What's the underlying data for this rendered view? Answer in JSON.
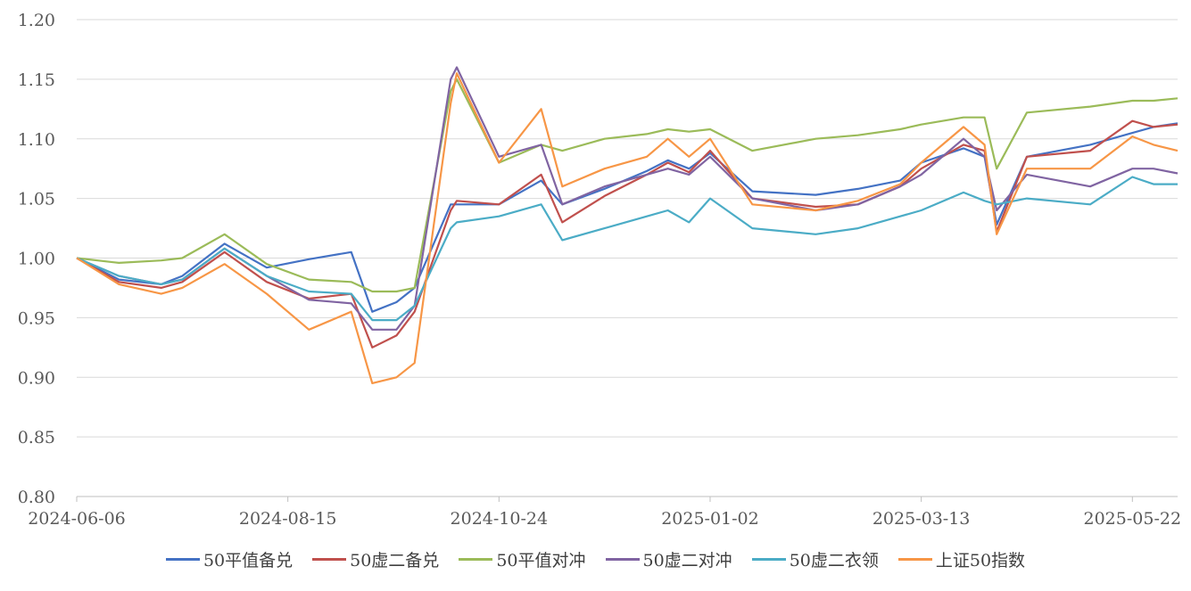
{
  "chart_data": {
    "type": "line",
    "title": "",
    "xlabel": "",
    "ylabel": "",
    "ylim": [
      0.8,
      1.2
    ],
    "yticks": [
      "0.80",
      "0.85",
      "0.90",
      "0.95",
      "1.00",
      "1.05",
      "1.10",
      "1.15",
      "1.20"
    ],
    "xticks": [
      "2024-06-06",
      "2024-08-15",
      "2024-10-24",
      "2025-01-02",
      "2025-03-13",
      "2025-05-22"
    ],
    "grid": "horizontal",
    "legend": "bottom",
    "x": [
      "2024-06-06",
      "2024-06-20",
      "2024-07-04",
      "2024-07-11",
      "2024-07-25",
      "2024-08-08",
      "2024-08-22",
      "2024-09-05",
      "2024-09-12",
      "2024-09-20",
      "2024-09-26",
      "2024-10-08",
      "2024-10-10",
      "2024-10-24",
      "2024-11-07",
      "2024-11-14",
      "2024-11-28",
      "2024-12-12",
      "2024-12-19",
      "2024-12-26",
      "2025-01-02",
      "2025-01-16",
      "2025-02-06",
      "2025-02-20",
      "2025-03-06",
      "2025-03-13",
      "2025-03-27",
      "2025-04-03",
      "2025-04-07",
      "2025-04-17",
      "2025-05-08",
      "2025-05-22",
      "2025-05-29",
      "2025-06-06"
    ],
    "series": [
      {
        "name": "50平值备兑",
        "color": "#4472C4",
        "values": [
          1.0,
          0.982,
          0.978,
          0.985,
          1.012,
          0.992,
          0.999,
          1.005,
          0.955,
          0.963,
          0.975,
          1.045,
          1.045,
          1.045,
          1.065,
          1.045,
          1.058,
          1.073,
          1.082,
          1.075,
          1.088,
          1.056,
          1.053,
          1.058,
          1.065,
          1.08,
          1.092,
          1.085,
          1.028,
          1.085,
          1.095,
          1.105,
          1.11,
          1.113
        ]
      },
      {
        "name": "50虚二备兑",
        "color": "#C0504D",
        "values": [
          1.0,
          0.98,
          0.975,
          0.98,
          1.005,
          0.98,
          0.966,
          0.97,
          0.925,
          0.935,
          0.955,
          1.04,
          1.048,
          1.045,
          1.07,
          1.03,
          1.052,
          1.07,
          1.08,
          1.072,
          1.09,
          1.05,
          1.043,
          1.045,
          1.06,
          1.075,
          1.095,
          1.09,
          1.022,
          1.085,
          1.09,
          1.115,
          1.11,
          1.112
        ]
      },
      {
        "name": "50平值对冲",
        "color": "#9BBB59",
        "values": [
          1.0,
          0.996,
          0.998,
          1.0,
          1.02,
          0.995,
          0.982,
          0.98,
          0.972,
          0.972,
          0.975,
          1.14,
          1.15,
          1.08,
          1.095,
          1.09,
          1.1,
          1.104,
          1.108,
          1.106,
          1.108,
          1.09,
          1.1,
          1.103,
          1.108,
          1.112,
          1.118,
          1.118,
          1.075,
          1.122,
          1.127,
          1.132,
          1.132,
          1.134
        ]
      },
      {
        "name": "50虚二对冲",
        "color": "#8064A2",
        "values": [
          1.0,
          0.985,
          0.978,
          0.982,
          1.008,
          0.985,
          0.965,
          0.962,
          0.94,
          0.94,
          0.96,
          1.15,
          1.16,
          1.085,
          1.095,
          1.045,
          1.06,
          1.07,
          1.075,
          1.07,
          1.085,
          1.05,
          1.04,
          1.045,
          1.06,
          1.07,
          1.1,
          1.085,
          1.04,
          1.07,
          1.06,
          1.075,
          1.075,
          1.071
        ]
      },
      {
        "name": "50虚二衣领",
        "color": "#4BACC6",
        "values": [
          1.0,
          0.985,
          0.978,
          0.982,
          1.008,
          0.985,
          0.972,
          0.97,
          0.948,
          0.948,
          0.96,
          1.025,
          1.03,
          1.035,
          1.045,
          1.015,
          1.025,
          1.035,
          1.04,
          1.03,
          1.05,
          1.025,
          1.02,
          1.025,
          1.035,
          1.04,
          1.055,
          1.048,
          1.045,
          1.05,
          1.045,
          1.068,
          1.062,
          1.062
        ]
      },
      {
        "name": "上证50指数",
        "color": "#F79646",
        "values": [
          1.0,
          0.978,
          0.97,
          0.975,
          0.995,
          0.97,
          0.94,
          0.955,
          0.895,
          0.9,
          0.912,
          1.13,
          1.155,
          1.08,
          1.125,
          1.06,
          1.075,
          1.085,
          1.1,
          1.085,
          1.1,
          1.045,
          1.04,
          1.048,
          1.062,
          1.08,
          1.11,
          1.095,
          1.02,
          1.075,
          1.075,
          1.102,
          1.095,
          1.09
        ]
      }
    ]
  }
}
